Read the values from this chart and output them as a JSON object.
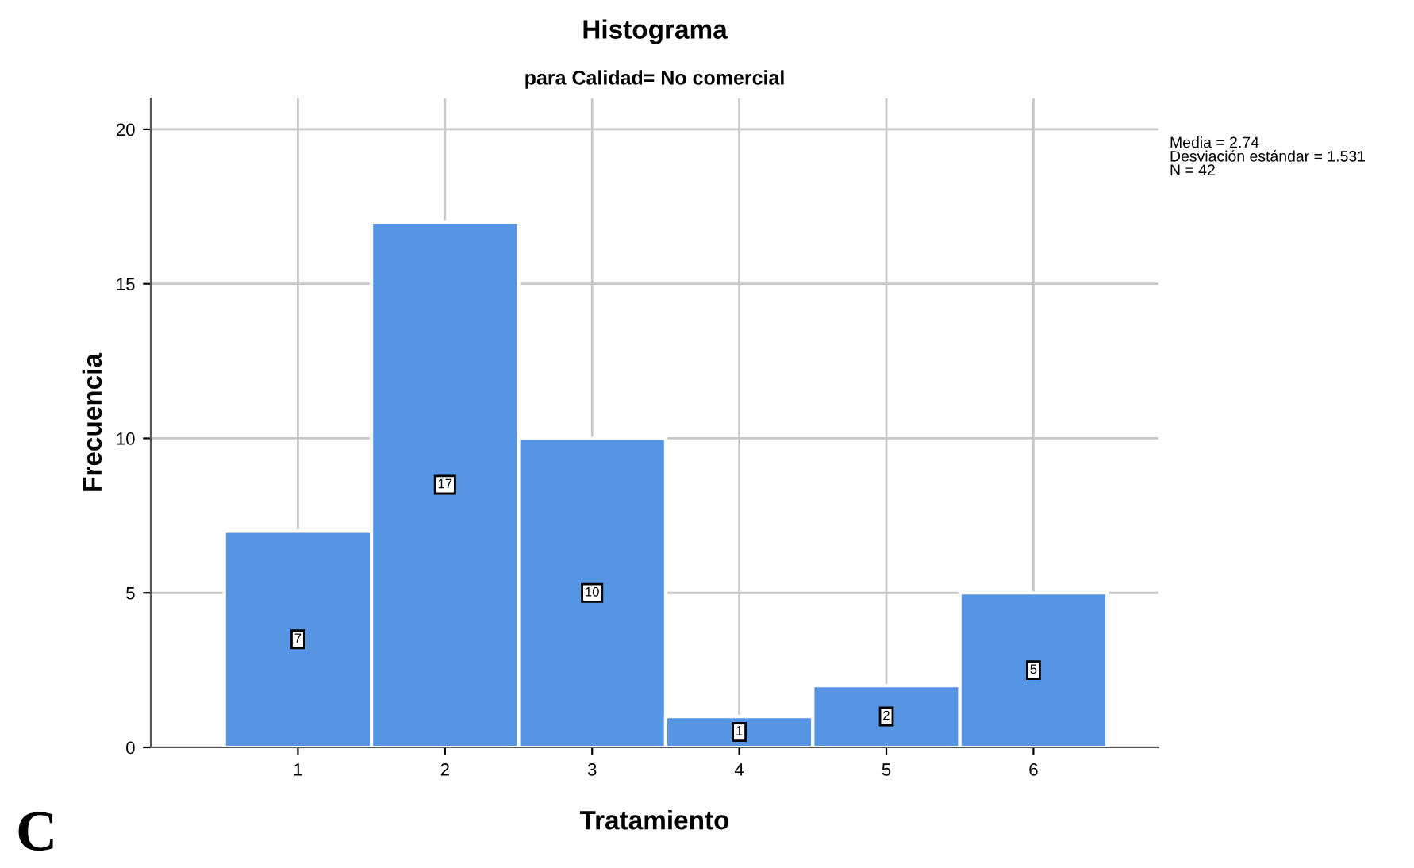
{
  "chart_data": {
    "type": "histogram",
    "title": "Histograma",
    "subtitle": "para Calidad= No comercial",
    "xlabel": "Tratamiento",
    "ylabel": "Frecuencia",
    "bins": [
      0.5,
      1.5,
      2.5,
      3.5,
      4.5,
      5.5,
      6.5
    ],
    "values": [
      7,
      17,
      10,
      1,
      2,
      5
    ],
    "color": "#5595e3",
    "data_labels": true,
    "xlim": [
      0,
      6.85
    ],
    "xticks": [
      1,
      2,
      3,
      4,
      5,
      6
    ],
    "ylim": [
      0,
      21
    ],
    "yticks": [
      0,
      5,
      10,
      15,
      20
    ],
    "grid": true,
    "annotations": [
      "Media = 2.74\nDesviación estándar = 1.531\nN = 42",
      "C"
    ]
  }
}
